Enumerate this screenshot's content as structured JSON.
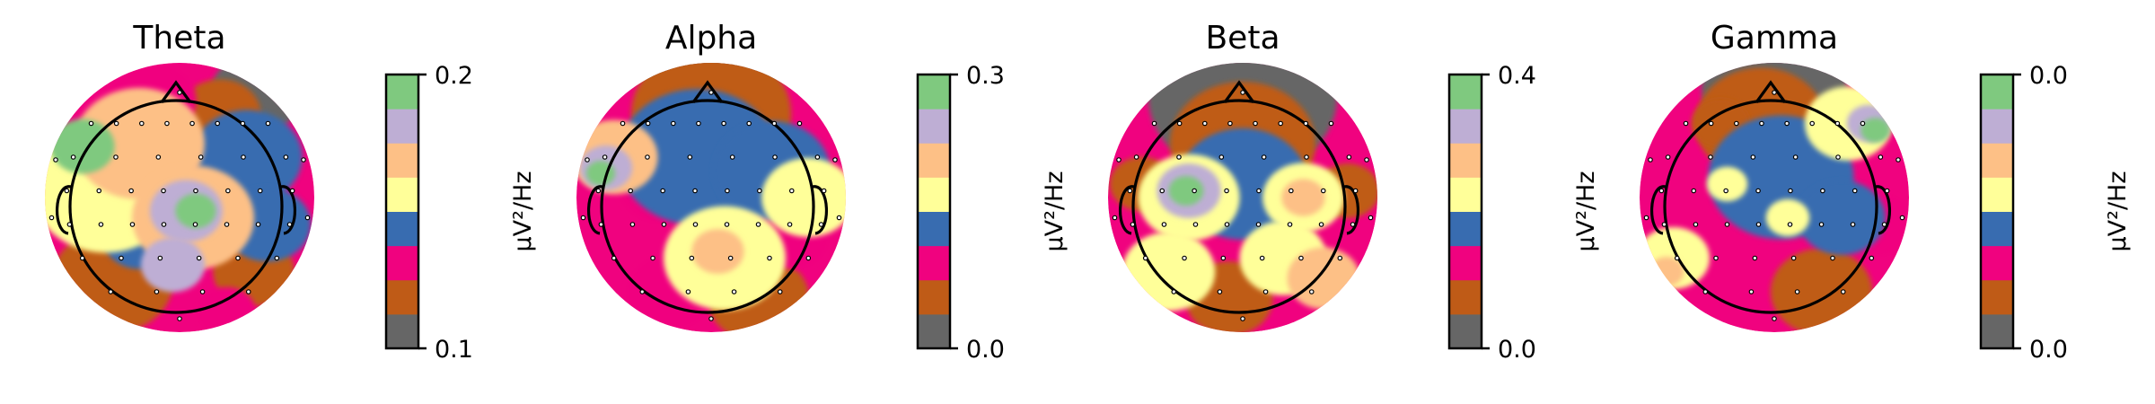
{
  "chart_data": [
    {
      "type": "heatmap",
      "title": "Theta",
      "colorbar": {
        "label": "µV²/Hz",
        "min_label": "0.1",
        "max_label": "0.2"
      },
      "blobs": [
        {
          "x": -0.55,
          "y": 0.05,
          "r": 0.5,
          "level": 4
        },
        {
          "x": -0.3,
          "y": 0.4,
          "r": 0.45,
          "level": 5
        },
        {
          "x": 0.1,
          "y": -0.15,
          "r": 0.42,
          "level": 5
        },
        {
          "x": 0.05,
          "y": -0.1,
          "r": 0.25,
          "level": 6
        },
        {
          "x": 0.12,
          "y": -0.1,
          "r": 0.14,
          "level": 7
        },
        {
          "x": -0.72,
          "y": 0.38,
          "r": 0.22,
          "level": 7
        },
        {
          "x": -0.05,
          "y": -0.5,
          "r": 0.22,
          "level": 6
        },
        {
          "x": 0.5,
          "y": 0.3,
          "r": 0.38,
          "level": 3
        },
        {
          "x": 0.65,
          "y": -0.2,
          "r": 0.3,
          "level": 3
        },
        {
          "x": 0.45,
          "y": 0.15,
          "r": 0.2,
          "level": 2
        },
        {
          "x": -0.2,
          "y": 0.72,
          "r": 0.3,
          "level": 2
        },
        {
          "x": 0.3,
          "y": 0.62,
          "r": 0.28,
          "level": 1
        },
        {
          "x": 0.58,
          "y": 0.78,
          "r": 0.32,
          "level": 0
        },
        {
          "x": -0.5,
          "y": -0.62,
          "r": 0.42,
          "level": 1
        },
        {
          "x": 0.55,
          "y": -0.55,
          "r": 0.28,
          "level": 1
        },
        {
          "x": -0.3,
          "y": -0.3,
          "r": 0.25,
          "level": 3
        },
        {
          "x": 0.35,
          "y": -0.85,
          "r": 0.2,
          "level": 2
        }
      ]
    },
    {
      "type": "heatmap",
      "title": "Alpha",
      "colorbar": {
        "label": "µV²/Hz",
        "min_label": "0.0",
        "max_label": "0.3"
      },
      "blobs": [
        {
          "x": 0.0,
          "y": 0.88,
          "r": 0.45,
          "level": 0
        },
        {
          "x": 0.0,
          "y": 0.62,
          "r": 0.55,
          "level": 1
        },
        {
          "x": -0.1,
          "y": 0.3,
          "r": 0.55,
          "level": 3
        },
        {
          "x": 0.45,
          "y": 0.2,
          "r": 0.4,
          "level": 3
        },
        {
          "x": -0.35,
          "y": 0.1,
          "r": 0.32,
          "level": 2
        },
        {
          "x": -0.72,
          "y": 0.3,
          "r": 0.3,
          "level": 5
        },
        {
          "x": -0.78,
          "y": 0.22,
          "r": 0.18,
          "level": 6
        },
        {
          "x": -0.82,
          "y": 0.18,
          "r": 0.1,
          "level": 7
        },
        {
          "x": 0.1,
          "y": -0.45,
          "r": 0.42,
          "level": 4
        },
        {
          "x": 0.72,
          "y": 0.0,
          "r": 0.32,
          "level": 4
        },
        {
          "x": 0.35,
          "y": -0.75,
          "r": 0.35,
          "level": 1
        },
        {
          "x": -0.3,
          "y": -0.7,
          "r": 0.3,
          "level": 2
        },
        {
          "x": 0.05,
          "y": -0.4,
          "r": 0.18,
          "level": 5
        },
        {
          "x": 0.6,
          "y": -0.3,
          "r": 0.25,
          "level": 2
        }
      ]
    },
    {
      "type": "heatmap",
      "title": "Beta",
      "colorbar": {
        "label": "µV²/Hz",
        "min_label": "0.0",
        "max_label": "0.4"
      },
      "blobs": [
        {
          "x": 0.0,
          "y": 0.75,
          "r": 0.65,
          "level": 0
        },
        {
          "x": 0.0,
          "y": 0.4,
          "r": 0.5,
          "level": 1
        },
        {
          "x": 0.0,
          "y": 0.1,
          "r": 0.45,
          "level": 3
        },
        {
          "x": -0.4,
          "y": 0.0,
          "r": 0.35,
          "level": 4
        },
        {
          "x": -0.4,
          "y": 0.05,
          "r": 0.22,
          "level": 6
        },
        {
          "x": -0.42,
          "y": 0.05,
          "r": 0.12,
          "level": 7
        },
        {
          "x": 0.45,
          "y": 0.0,
          "r": 0.28,
          "level": 4
        },
        {
          "x": 0.45,
          "y": 0.0,
          "r": 0.15,
          "level": 5
        },
        {
          "x": -0.75,
          "y": 0.1,
          "r": 0.22,
          "level": 1
        },
        {
          "x": 0.78,
          "y": 0.05,
          "r": 0.22,
          "level": 1
        },
        {
          "x": -0.55,
          "y": -0.55,
          "r": 0.32,
          "level": 4
        },
        {
          "x": 0.3,
          "y": -0.45,
          "r": 0.3,
          "level": 4
        },
        {
          "x": -0.1,
          "y": -0.75,
          "r": 0.3,
          "level": 1
        },
        {
          "x": 0.6,
          "y": -0.6,
          "r": 0.25,
          "level": 5
        }
      ]
    },
    {
      "type": "heatmap",
      "title": "Gamma",
      "colorbar": {
        "label": "µV²/Hz",
        "min_label": "0.0",
        "max_label": "0.0"
      },
      "blobs": [
        {
          "x": 0.0,
          "y": 0.82,
          "r": 0.5,
          "level": 0
        },
        {
          "x": -0.1,
          "y": 0.55,
          "r": 0.45,
          "level": 1
        },
        {
          "x": 0.05,
          "y": 0.15,
          "r": 0.5,
          "level": 3
        },
        {
          "x": -0.35,
          "y": 0.1,
          "r": 0.14,
          "level": 4
        },
        {
          "x": 0.1,
          "y": -0.15,
          "r": 0.15,
          "level": 4
        },
        {
          "x": 0.55,
          "y": 0.55,
          "r": 0.3,
          "level": 4
        },
        {
          "x": 0.7,
          "y": 0.55,
          "r": 0.15,
          "level": 6
        },
        {
          "x": 0.75,
          "y": 0.5,
          "r": 0.1,
          "level": 7
        },
        {
          "x": -0.75,
          "y": -0.45,
          "r": 0.25,
          "level": 4
        },
        {
          "x": -0.8,
          "y": -0.55,
          "r": 0.12,
          "level": 5
        },
        {
          "x": 0.5,
          "y": -0.15,
          "r": 0.3,
          "level": 3
        },
        {
          "x": 0.35,
          "y": -0.7,
          "r": 0.35,
          "level": 1
        },
        {
          "x": 0.78,
          "y": -0.2,
          "r": 0.25,
          "level": 2
        },
        {
          "x": -0.4,
          "y": 0.55,
          "r": 0.2,
          "level": 1
        }
      ]
    }
  ],
  "colormap": [
    "#666666",
    "#bf5b17",
    "#f0027f",
    "#386cb0",
    "#ffff99",
    "#fdc086",
    "#beaed4",
    "#7fc97f"
  ],
  "base_level": 2
}
